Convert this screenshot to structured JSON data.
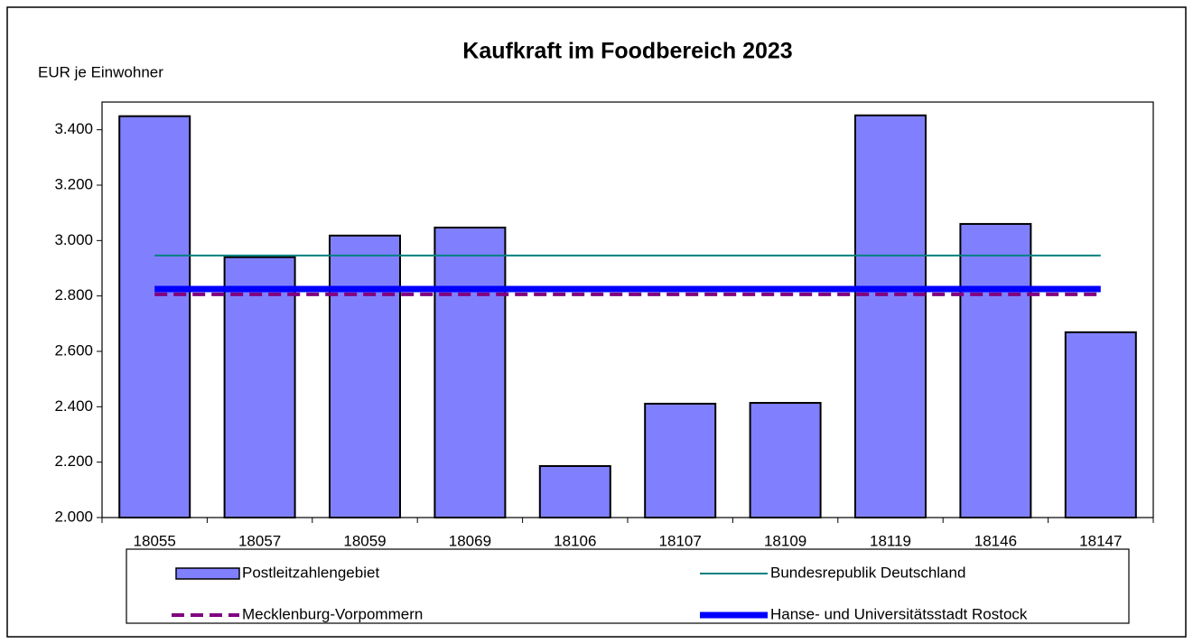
{
  "chart_data": {
    "type": "bar",
    "title": "Kaufkraft im Foodbereich 2023",
    "y_label": "EUR je Einwohner",
    "categories": [
      "18055",
      "18057",
      "18059",
      "18069",
      "18106",
      "18107",
      "18109",
      "18119",
      "18146",
      "18147"
    ],
    "series": [
      {
        "name": "Postleitzahlengebiet",
        "style": "bar",
        "color": "#8080ff",
        "values": [
          3449,
          2940,
          3018,
          3047,
          2186,
          2411,
          2414,
          3452,
          3060,
          2669
        ]
      },
      {
        "name": "Bundesrepublik Deutschland",
        "style": "line",
        "color": "#008080",
        "width": 2,
        "dash": false,
        "values": [
          2946,
          2946,
          2946,
          2946,
          2946,
          2946,
          2946,
          2946,
          2946,
          2946
        ]
      },
      {
        "name": "Mecklenburg-Vorpommern",
        "style": "line",
        "color": "#800080",
        "width": 4,
        "dash": true,
        "values": [
          2806,
          2806,
          2806,
          2806,
          2806,
          2806,
          2806,
          2806,
          2806,
          2806
        ]
      },
      {
        "name": "Hanse- und Universitätsstadt Rostock",
        "style": "line",
        "color": "#0000ff",
        "width": 7,
        "dash": false,
        "values": [
          2825,
          2825,
          2825,
          2825,
          2825,
          2825,
          2825,
          2825,
          2825,
          2825
        ]
      }
    ],
    "ylim": [
      2000,
      3500
    ],
    "yticks": [
      {
        "value": 2000,
        "label": "2.000"
      },
      {
        "value": 2200,
        "label": "2.200"
      },
      {
        "value": 2400,
        "label": "2.400"
      },
      {
        "value": 2600,
        "label": "2.600"
      },
      {
        "value": 2800,
        "label": "2.800"
      },
      {
        "value": 3000,
        "label": "3.000"
      },
      {
        "value": 3200,
        "label": "3.200"
      },
      {
        "value": 3400,
        "label": "3.400"
      }
    ],
    "grid": false
  }
}
